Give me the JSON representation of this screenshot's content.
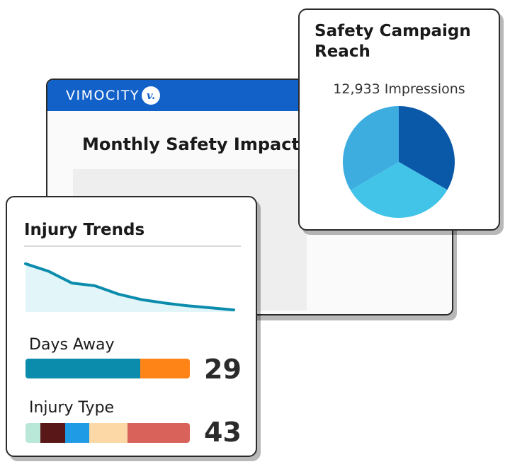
{
  "dashboard": {
    "brand": "VIMOCITY",
    "logo_mark": "v.",
    "title": "Monthly Safety Impact"
  },
  "campaign": {
    "title": "Safety Campaign Reach",
    "impressions": "12,933 Impressions"
  },
  "injury": {
    "title": "Injury Trends",
    "days_away": {
      "label": "Days Away",
      "value": "29",
      "segments": [
        {
          "fraction": 0.7,
          "color": "#0b8cad"
        },
        {
          "fraction": 0.3,
          "color": "#ff8418"
        }
      ]
    },
    "injury_type": {
      "label": "Injury Type",
      "value": "43",
      "segments": [
        {
          "fraction": 0.09,
          "color": "#b9e8d8"
        },
        {
          "fraction": 0.15,
          "color": "#5a1717"
        },
        {
          "fraction": 0.15,
          "color": "#1f9be6"
        },
        {
          "fraction": 0.23,
          "color": "#fbd8a6"
        },
        {
          "fraction": 0.38,
          "color": "#d9625a"
        }
      ]
    }
  },
  "chart_data": [
    {
      "type": "pie",
      "values": [
        33.3,
        33.3,
        33.4
      ],
      "colors": [
        "#0a58a8",
        "#42c4e8",
        "#3dacdf"
      ],
      "title": "Safety Campaign Reach",
      "legend": "none"
    },
    {
      "type": "area",
      "x": [
        0,
        1,
        2,
        3,
        4,
        5,
        6,
        7,
        8,
        9
      ],
      "y": [
        70,
        59,
        42,
        38,
        26,
        18,
        13,
        9,
        6,
        3
      ],
      "ylim": [
        0,
        78
      ],
      "title": "Injury Trends",
      "line_color": "#0b8cad",
      "fill_color": "#e2f5f8",
      "grid": false
    }
  ]
}
